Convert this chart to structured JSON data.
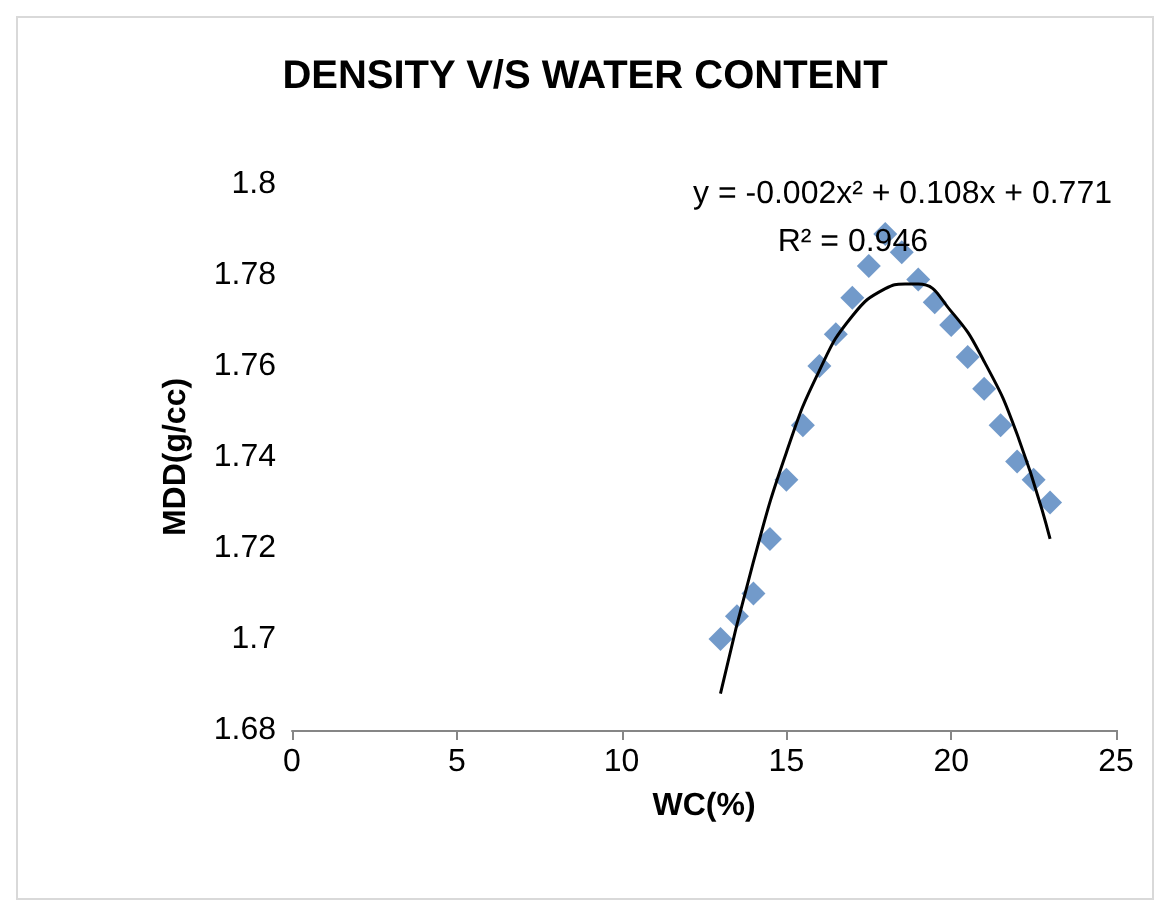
{
  "chart_data": {
    "type": "scatter",
    "title": "DENSITY V/S WATER CONTENT",
    "xlabel": "WC(%)",
    "ylabel": "MDD(g/cc)",
    "xlim": [
      0,
      25
    ],
    "xticks": [
      0,
      5,
      10,
      15,
      20,
      25
    ],
    "ylim": [
      1.68,
      1.8
    ],
    "yticks": [
      1.68,
      1.7,
      1.72,
      1.74,
      1.76,
      1.78,
      1.8
    ],
    "grid": false,
    "series": [
      {
        "marker": "diamond",
        "color": "#4f81bd",
        "x": [
          13,
          13.5,
          14,
          14.5,
          15,
          15.5,
          16,
          16.5,
          17,
          17.5,
          18,
          18.5,
          19,
          19.5,
          20,
          20.5,
          21,
          21.5,
          22,
          22.5,
          23
        ],
        "values": [
          1.7,
          1.705,
          1.71,
          1.722,
          1.735,
          1.747,
          1.76,
          1.767,
          1.775,
          1.782,
          1.789,
          1.785,
          1.779,
          1.774,
          1.769,
          1.762,
          1.755,
          1.747,
          1.739,
          1.735,
          1.73
        ]
      },
      {
        "type": "line",
        "marker": "none",
        "color": "#000000",
        "x": [
          13,
          14,
          15,
          16,
          17,
          18,
          18.6,
          19,
          20,
          21,
          22,
          23
        ],
        "values": [
          1.688,
          1.717,
          1.741,
          1.759,
          1.771,
          1.777,
          1.778,
          1.778,
          1.772,
          1.761,
          1.745,
          1.722
        ]
      }
    ],
    "annotations": [
      "y = -0.002x² + 0.108x + 0.771",
      "R² = 0.946"
    ]
  }
}
